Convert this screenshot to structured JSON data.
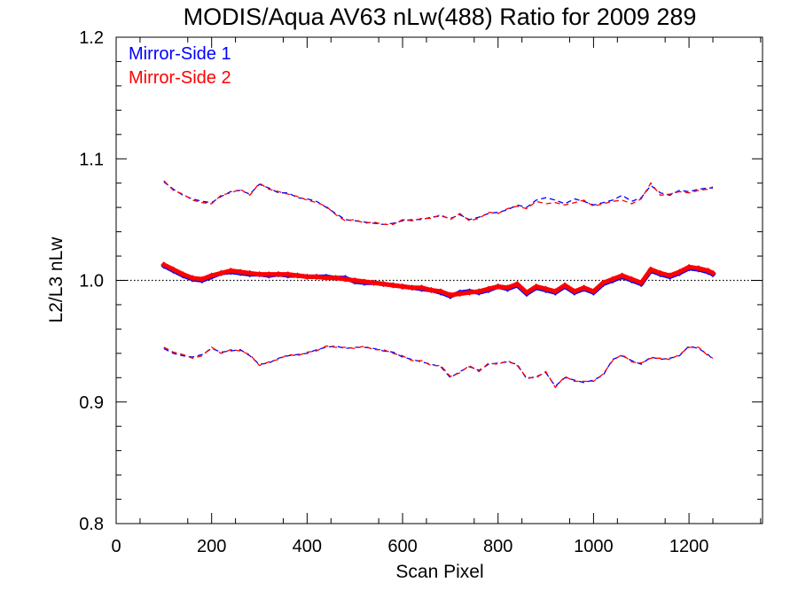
{
  "chart_data": {
    "type": "line",
    "title": "MODIS/Aqua AV63 nLw(488) Ratio for 2009 289",
    "xlabel": "Scan Pixel",
    "ylabel": "L2/L3 nLw",
    "xlim": [
      0,
      1354
    ],
    "ylim": [
      0.8,
      1.2
    ],
    "xticks": [
      0,
      200,
      400,
      600,
      800,
      1000,
      1200
    ],
    "xtick_labels": [
      "0",
      "200",
      "400",
      "600",
      "800",
      "1000",
      "1200"
    ],
    "yticks": [
      0.8,
      0.9,
      1.0,
      1.1,
      1.2
    ],
    "ytick_labels": [
      "0.8",
      "0.9",
      "1.0",
      "1.1",
      "1.2"
    ],
    "reference_line": {
      "y": 1.0,
      "style": "dotted"
    },
    "legend_position": "top-left",
    "colors": {
      "mirror_side_1": "#0000ff",
      "mirror_side_2": "#ff0000"
    },
    "series": [
      {
        "name": "Mirror-Side 1",
        "color": "#0000ff",
        "style": "markers",
        "x": [
          100,
          120,
          140,
          160,
          180,
          200,
          220,
          240,
          260,
          280,
          300,
          320,
          340,
          360,
          380,
          400,
          420,
          440,
          460,
          480,
          500,
          520,
          540,
          560,
          580,
          600,
          620,
          640,
          660,
          680,
          700,
          720,
          740,
          760,
          780,
          800,
          820,
          840,
          860,
          880,
          900,
          920,
          940,
          960,
          980,
          1000,
          1020,
          1040,
          1060,
          1080,
          1100,
          1120,
          1140,
          1160,
          1180,
          1200,
          1220,
          1240,
          1250
        ],
        "y": [
          1.012,
          1.008,
          1.004,
          1.001,
          1.0,
          1.003,
          1.006,
          1.007,
          1.006,
          1.005,
          1.005,
          1.004,
          1.005,
          1.004,
          1.004,
          1.003,
          1.003,
          1.003,
          1.002,
          1.002,
          0.999,
          0.998,
          0.998,
          0.997,
          0.996,
          0.995,
          0.994,
          0.993,
          0.992,
          0.99,
          0.987,
          0.99,
          0.991,
          0.99,
          0.992,
          0.995,
          0.993,
          0.996,
          0.989,
          0.994,
          0.992,
          0.99,
          0.995,
          0.99,
          0.993,
          0.99,
          0.997,
          1.0,
          1.003,
          1.0,
          0.997,
          1.008,
          1.005,
          1.003,
          1.006,
          1.01,
          1.009,
          1.007,
          1.005
        ]
      },
      {
        "name": "Mirror-Side 2",
        "color": "#ff0000",
        "style": "markers",
        "x": [
          100,
          120,
          140,
          160,
          180,
          200,
          220,
          240,
          260,
          280,
          300,
          320,
          340,
          360,
          380,
          400,
          420,
          440,
          460,
          480,
          500,
          520,
          540,
          560,
          580,
          600,
          620,
          640,
          660,
          680,
          700,
          720,
          740,
          760,
          780,
          800,
          820,
          840,
          860,
          880,
          900,
          920,
          940,
          960,
          980,
          1000,
          1020,
          1040,
          1060,
          1080,
          1100,
          1120,
          1140,
          1160,
          1180,
          1200,
          1220,
          1240,
          1250
        ],
        "y": [
          1.013,
          1.009,
          1.005,
          1.002,
          1.001,
          1.004,
          1.006,
          1.008,
          1.007,
          1.006,
          1.005,
          1.005,
          1.005,
          1.005,
          1.004,
          1.003,
          1.003,
          1.002,
          1.002,
          1.001,
          1.0,
          0.999,
          0.998,
          0.997,
          0.996,
          0.995,
          0.994,
          0.994,
          0.992,
          0.991,
          0.988,
          0.989,
          0.99,
          0.991,
          0.993,
          0.995,
          0.994,
          0.997,
          0.99,
          0.995,
          0.993,
          0.991,
          0.996,
          0.991,
          0.994,
          0.991,
          0.998,
          1.001,
          1.004,
          1.001,
          0.998,
          1.009,
          1.006,
          1.004,
          1.007,
          1.011,
          1.01,
          1.008,
          1.006
        ]
      },
      {
        "name": "",
        "color": "#0000ff",
        "style": "dashed",
        "x": [
          100,
          120,
          140,
          160,
          180,
          200,
          220,
          240,
          260,
          280,
          300,
          320,
          340,
          360,
          380,
          400,
          420,
          440,
          460,
          480,
          500,
          520,
          540,
          560,
          580,
          600,
          620,
          640,
          660,
          680,
          700,
          720,
          740,
          760,
          780,
          800,
          820,
          840,
          860,
          880,
          900,
          920,
          940,
          960,
          980,
          1000,
          1020,
          1040,
          1060,
          1080,
          1100,
          1120,
          1140,
          1160,
          1180,
          1200,
          1220,
          1240,
          1250
        ],
        "y": [
          1.081,
          1.075,
          1.07,
          1.067,
          1.065,
          1.064,
          1.069,
          1.073,
          1.074,
          1.071,
          1.079,
          1.076,
          1.072,
          1.072,
          1.068,
          1.067,
          1.065,
          1.06,
          1.055,
          1.05,
          1.049,
          1.048,
          1.047,
          1.046,
          1.047,
          1.049,
          1.05,
          1.05,
          1.052,
          1.053,
          1.051,
          1.054,
          1.05,
          1.052,
          1.055,
          1.056,
          1.058,
          1.062,
          1.06,
          1.066,
          1.068,
          1.066,
          1.063,
          1.067,
          1.065,
          1.062,
          1.064,
          1.066,
          1.07,
          1.065,
          1.068,
          1.078,
          1.072,
          1.07,
          1.074,
          1.073,
          1.075,
          1.076,
          1.076
        ]
      },
      {
        "name": "",
        "color": "#ff0000",
        "style": "dashed",
        "x": [
          100,
          120,
          140,
          160,
          180,
          200,
          220,
          240,
          260,
          280,
          300,
          320,
          340,
          360,
          380,
          400,
          420,
          440,
          460,
          480,
          500,
          520,
          540,
          560,
          580,
          600,
          620,
          640,
          660,
          680,
          700,
          720,
          740,
          760,
          780,
          800,
          820,
          840,
          860,
          880,
          900,
          920,
          940,
          960,
          980,
          1000,
          1020,
          1040,
          1060,
          1080,
          1100,
          1120,
          1140,
          1160,
          1180,
          1200,
          1220,
          1240,
          1250
        ],
        "y": [
          1.082,
          1.074,
          1.071,
          1.066,
          1.064,
          1.063,
          1.07,
          1.072,
          1.075,
          1.07,
          1.08,
          1.075,
          1.073,
          1.071,
          1.069,
          1.066,
          1.064,
          1.061,
          1.054,
          1.049,
          1.05,
          1.047,
          1.048,
          1.046,
          1.046,
          1.05,
          1.049,
          1.051,
          1.051,
          1.054,
          1.05,
          1.055,
          1.049,
          1.051,
          1.056,
          1.055,
          1.059,
          1.061,
          1.059,
          1.065,
          1.063,
          1.064,
          1.062,
          1.064,
          1.066,
          1.061,
          1.063,
          1.065,
          1.066,
          1.063,
          1.067,
          1.08,
          1.07,
          1.071,
          1.073,
          1.072,
          1.074,
          1.075,
          1.077
        ]
      },
      {
        "name": "",
        "color": "#0000ff",
        "style": "dashed",
        "x": [
          100,
          120,
          140,
          160,
          180,
          200,
          220,
          240,
          260,
          280,
          300,
          320,
          340,
          360,
          380,
          400,
          420,
          440,
          460,
          480,
          500,
          520,
          540,
          560,
          580,
          600,
          620,
          640,
          660,
          680,
          700,
          720,
          740,
          760,
          780,
          800,
          820,
          840,
          860,
          880,
          900,
          920,
          940,
          960,
          980,
          1000,
          1020,
          1040,
          1060,
          1080,
          1100,
          1120,
          1140,
          1160,
          1180,
          1200,
          1220,
          1240,
          1250
        ],
        "y": [
          0.944,
          0.94,
          0.938,
          0.937,
          0.939,
          0.944,
          0.941,
          0.942,
          0.943,
          0.938,
          0.931,
          0.932,
          0.936,
          0.938,
          0.939,
          0.94,
          0.943,
          0.945,
          0.946,
          0.944,
          0.945,
          0.945,
          0.944,
          0.942,
          0.941,
          0.937,
          0.935,
          0.933,
          0.931,
          0.929,
          0.92,
          0.925,
          0.929,
          0.926,
          0.931,
          0.932,
          0.933,
          0.931,
          0.919,
          0.921,
          0.924,
          0.913,
          0.92,
          0.918,
          0.916,
          0.918,
          0.922,
          0.935,
          0.938,
          0.934,
          0.931,
          0.937,
          0.935,
          0.936,
          0.938,
          0.946,
          0.944,
          0.939,
          0.935
        ]
      },
      {
        "name": "",
        "color": "#ff0000",
        "style": "dashed",
        "x": [
          100,
          120,
          140,
          160,
          180,
          200,
          220,
          240,
          260,
          280,
          300,
          320,
          340,
          360,
          380,
          400,
          420,
          440,
          460,
          480,
          500,
          520,
          540,
          560,
          580,
          600,
          620,
          640,
          660,
          680,
          700,
          720,
          740,
          760,
          780,
          800,
          820,
          840,
          860,
          880,
          900,
          920,
          940,
          960,
          980,
          1000,
          1020,
          1040,
          1060,
          1080,
          1100,
          1120,
          1140,
          1160,
          1180,
          1200,
          1220,
          1240,
          1250
        ],
        "y": [
          0.945,
          0.941,
          0.939,
          0.936,
          0.938,
          0.945,
          0.94,
          0.943,
          0.942,
          0.939,
          0.93,
          0.933,
          0.935,
          0.939,
          0.938,
          0.941,
          0.942,
          0.946,
          0.945,
          0.945,
          0.944,
          0.946,
          0.943,
          0.943,
          0.94,
          0.938,
          0.934,
          0.934,
          0.93,
          0.93,
          0.921,
          0.924,
          0.93,
          0.925,
          0.932,
          0.931,
          0.934,
          0.93,
          0.92,
          0.92,
          0.925,
          0.912,
          0.921,
          0.917,
          0.917,
          0.917,
          0.923,
          0.934,
          0.939,
          0.933,
          0.932,
          0.936,
          0.936,
          0.935,
          0.939,
          0.945,
          0.945,
          0.938,
          0.936
        ]
      }
    ]
  }
}
